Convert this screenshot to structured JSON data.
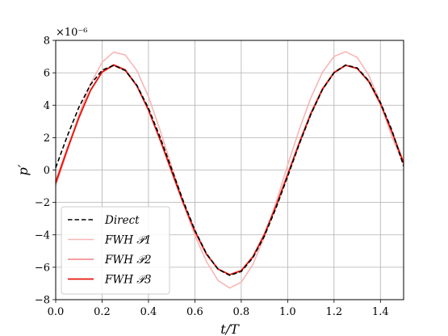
{
  "chart_data": {
    "type": "line",
    "xlabel": "t/T",
    "ylabel": "p′",
    "xlim": [
      0.0,
      1.5
    ],
    "ylim": [
      -8,
      8
    ],
    "y_scale_label": "×10⁻⁶",
    "x_ticks": [
      "0.0",
      "0.2",
      "0.4",
      "0.6",
      "0.8",
      "1.0",
      "1.2",
      "1.4"
    ],
    "y_ticks": [
      "−8",
      "−6",
      "−4",
      "−2",
      "0",
      "2",
      "4",
      "6",
      "8"
    ],
    "grid": true,
    "legend_position": "lower-left",
    "x": [
      0.0,
      0.05,
      0.1,
      0.15,
      0.2,
      0.25,
      0.3,
      0.35,
      0.4,
      0.45,
      0.5,
      0.55,
      0.6,
      0.65,
      0.7,
      0.75,
      0.8,
      0.85,
      0.9,
      0.95,
      1.0,
      1.05,
      1.1,
      1.15,
      1.2,
      1.25,
      1.3,
      1.35,
      1.4,
      1.45,
      1.5
    ],
    "series": [
      {
        "name": "Direct",
        "color": "#000000",
        "dash": "dashed",
        "values": [
          0.14,
          2.1,
          3.87,
          5.27,
          6.16,
          6.46,
          6.14,
          5.23,
          3.81,
          2.03,
          0.06,
          -1.91,
          -3.71,
          -5.16,
          -6.12,
          -6.5,
          -6.26,
          -5.42,
          -4.07,
          -2.34,
          -0.4,
          1.59,
          3.43,
          4.96,
          6.01,
          6.48,
          6.3,
          5.5,
          4.17,
          2.44,
          0.25
        ]
      },
      {
        "name": "FWH 𝒫1",
        "color": "#f7b6b6",
        "dash": "solid",
        "values": [
          -0.98,
          1.2,
          3.4,
          5.3,
          6.65,
          7.28,
          7.1,
          6.14,
          4.53,
          2.46,
          0.22,
          -2.02,
          -4.03,
          -5.65,
          -6.82,
          -7.28,
          -6.93,
          -5.83,
          -4.12,
          -2.0,
          0.3,
          2.49,
          4.45,
          6.03,
          7.01,
          7.3,
          6.95,
          5.85,
          4.14,
          2.03,
          0.35
        ]
      },
      {
        "name": "FWH 𝒫2",
        "color": "#f08080",
        "dash": "solid",
        "values": [
          -0.68,
          1.35,
          3.28,
          4.94,
          6.06,
          6.51,
          6.2,
          5.21,
          3.7,
          1.85,
          -0.13,
          -2.08,
          -3.82,
          -5.21,
          -6.12,
          -6.46,
          -6.2,
          -5.33,
          -3.93,
          -2.17,
          -0.24,
          1.72,
          3.53,
          5.02,
          6.04,
          6.48,
          6.27,
          5.43,
          4.05,
          2.29,
          0.4
        ]
      },
      {
        "name": "FWH 𝒫3",
        "color": "#e8150d",
        "dash": "solid",
        "values": [
          -0.8,
          1.26,
          3.22,
          4.91,
          6.04,
          6.47,
          6.16,
          5.19,
          3.7,
          1.88,
          -0.07,
          -2.02,
          -3.77,
          -5.19,
          -6.11,
          -6.46,
          -6.21,
          -5.37,
          -3.98,
          -2.23,
          -0.3,
          1.65,
          3.47,
          4.98,
          6.0,
          6.46,
          6.27,
          5.47,
          4.11,
          2.35,
          0.45
        ]
      }
    ]
  }
}
